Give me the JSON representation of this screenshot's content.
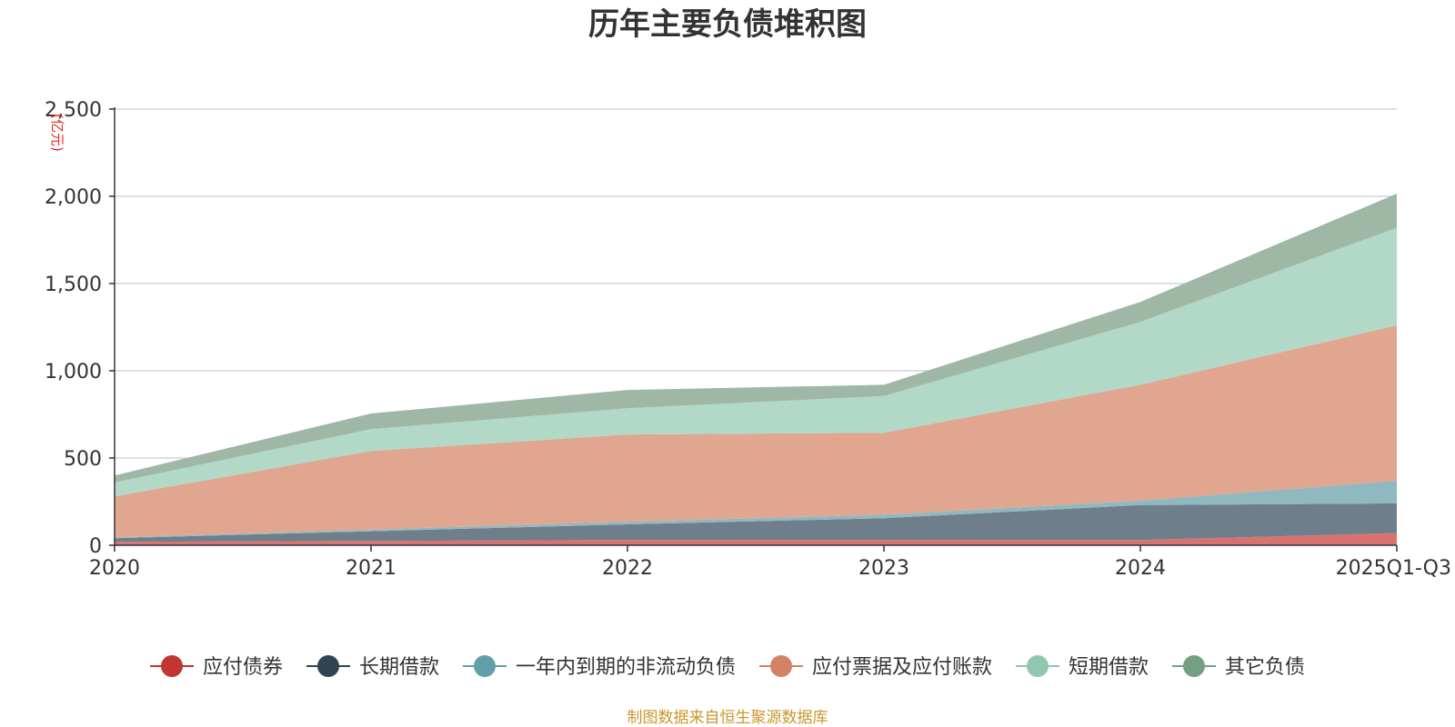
{
  "chart_data": {
    "type": "area",
    "stacked": true,
    "title": "历年主要负债堆积图",
    "ylabel": "(亿元)",
    "xlabel": "",
    "ylim": [
      0,
      2500
    ],
    "yticks": [
      0,
      500,
      1000,
      1500,
      2000,
      2500
    ],
    "ytick_labels": [
      "0",
      "500",
      "1,000",
      "1,500",
      "2,000",
      "2,500"
    ],
    "grid": true,
    "legend_position": "bottom",
    "categories": [
      "2020",
      "2021",
      "2022",
      "2023",
      "2024",
      "2025Q1-Q3"
    ],
    "series": [
      {
        "name": "应付债券",
        "color": "#c23531",
        "fill": "#d9726f",
        "values": [
          20,
          25,
          30,
          30,
          30,
          70
        ]
      },
      {
        "name": "长期借款",
        "color": "#2f4554",
        "fill": "#6e7e8a",
        "values": [
          20,
          55,
          90,
          125,
          200,
          170
        ]
      },
      {
        "name": "一年内到期的非流动负债",
        "color": "#61a0a8",
        "fill": "#8fb8c0",
        "values": [
          5,
          10,
          15,
          20,
          25,
          130
        ]
      },
      {
        "name": "应付票据及应付账款",
        "color": "#d48265",
        "fill": "#e0a690",
        "values": [
          235,
          450,
          500,
          470,
          665,
          890
        ]
      },
      {
        "name": "短期借款",
        "color": "#91c7ae",
        "fill": "#b2d8c7",
        "values": [
          80,
          125,
          150,
          210,
          360,
          560
        ]
      },
      {
        "name": "其它负债",
        "color": "#749f83",
        "fill": "#9fb8a6",
        "values": [
          40,
          90,
          105,
          65,
          115,
          195
        ]
      }
    ],
    "source": "制图数据来自恒生聚源数据库"
  }
}
